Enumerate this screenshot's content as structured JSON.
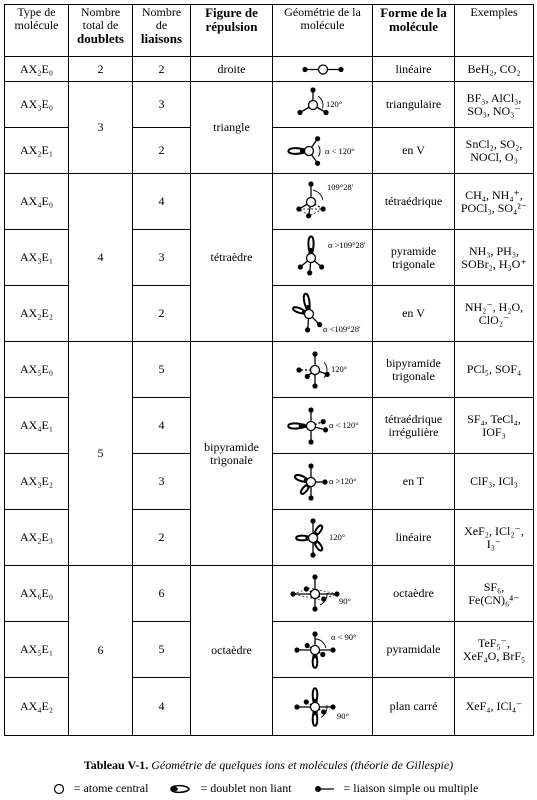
{
  "headers": {
    "type": "Type de molécule",
    "doublets": [
      "Nombre",
      "total de",
      "doublets"
    ],
    "liaisons": [
      "Nombre",
      "de",
      "liaisons"
    ],
    "figure": [
      "Figure de",
      "répulsion"
    ],
    "geometrie": [
      "Géométrie de la",
      "molécule"
    ],
    "forme": [
      "Forme de la",
      "molécule"
    ],
    "exemples": "Exemples"
  },
  "rows": [
    {
      "type": "AX₂E₀",
      "doublets": "2",
      "liaisons": "2",
      "figure": "droite",
      "angle": "",
      "forme": "linéaire",
      "exemples": [
        "BeH₂, CO₂"
      ],
      "geo": "linear"
    },
    {
      "type": "AX₃E₀",
      "doublets": "3",
      "liaisons": "3",
      "figure": "triangle",
      "angle": "120°",
      "forme": "triangulaire",
      "exemples": [
        "BF₃, AlCl₃,",
        "SO₃, NO₃⁻"
      ],
      "geo": "trigonal"
    },
    {
      "type": "AX₂E₁",
      "doublets": "",
      "liaisons": "2",
      "figure": "",
      "angle": "α < 120°",
      "forme": "en V",
      "exemples": [
        "SnCl₂, SO₂,",
        "NOCl, O₃"
      ],
      "geo": "bent3"
    },
    {
      "type": "AX₄E₀",
      "doublets": "4",
      "liaisons": "4",
      "figure": "tétraèdre",
      "angle": "109°28'",
      "forme": "tétraédrique",
      "exemples": [
        "CH₄, NH₄⁺,",
        "POCl₃, SO₄²⁻"
      ],
      "geo": "tetra"
    },
    {
      "type": "AX₃E₁",
      "doublets": "",
      "liaisons": "3",
      "figure": "",
      "angle": "α >109°28'",
      "forme": "pyramide trigonale",
      "exemples": [
        "NH₃, PH₃,",
        "SOBr₂, H₃O⁺"
      ],
      "geo": "pyramid4"
    },
    {
      "type": "AX₂E₂",
      "doublets": "",
      "liaisons": "2",
      "figure": "",
      "angle": "α <109°28'",
      "forme": "en V",
      "exemples": [
        "NH₂⁻, H₂O,",
        "ClO₂⁻"
      ],
      "geo": "bent4"
    },
    {
      "type": "AX₅E₀",
      "doublets": "5",
      "liaisons": "5",
      "figure": "bipyramide trigonale",
      "angle": "120°",
      "forme": "bipyramide trigonale",
      "exemples": [
        "PCl₅, SOF₄"
      ],
      "geo": "tbp"
    },
    {
      "type": "AX₄E₁",
      "doublets": "",
      "liaisons": "4",
      "figure": "",
      "angle": "α < 120°",
      "forme": "tétraédrique irrégulière",
      "exemples": [
        "SF₄, TeCl₄,",
        "IOF₃"
      ],
      "geo": "seesaw"
    },
    {
      "type": "AX₃E₂",
      "doublets": "",
      "liaisons": "3",
      "figure": "",
      "angle": "α >120°",
      "forme": "en T",
      "exemples": [
        "ClF₃, ICl₃"
      ],
      "geo": "tshape"
    },
    {
      "type": "AX₂E₃",
      "doublets": "",
      "liaisons": "2",
      "figure": "",
      "angle": "120°",
      "forme": "linéaire",
      "exemples": [
        "XeF₂, ICl₂⁻,",
        "I₃⁻"
      ],
      "geo": "linear5"
    },
    {
      "type": "AX₆E₀",
      "doublets": "6",
      "liaisons": "6",
      "figure": "octaèdre",
      "angle": "90°",
      "forme": "octaèdre",
      "exemples": [
        "SF₆,",
        "Fe(CN)₆⁴⁻"
      ],
      "geo": "octa"
    },
    {
      "type": "AX₅E₁",
      "doublets": "",
      "liaisons": "5",
      "figure": "",
      "angle": "α < 90°",
      "forme": "pyramidale",
      "exemples": [
        "TeF₅⁻,",
        "XeF₄O, BrF₅"
      ],
      "geo": "sqpyr"
    },
    {
      "type": "AX₄E₂",
      "doublets": "",
      "liaisons": "4",
      "figure": "",
      "angle": "90°",
      "forme": "plan carré",
      "exemples": [
        "XeF₄, ICl₄⁻"
      ],
      "geo": "sqplanar"
    }
  ],
  "caption": {
    "bold": "Tableau V-1.",
    "italic": "Géométrie de quelques ions et molécules (théorie de Gillespie)"
  },
  "legend": {
    "central": "= atome central",
    "lone_pair": "= doublet non liant",
    "bond": "= liaison simple ou multiple"
  }
}
